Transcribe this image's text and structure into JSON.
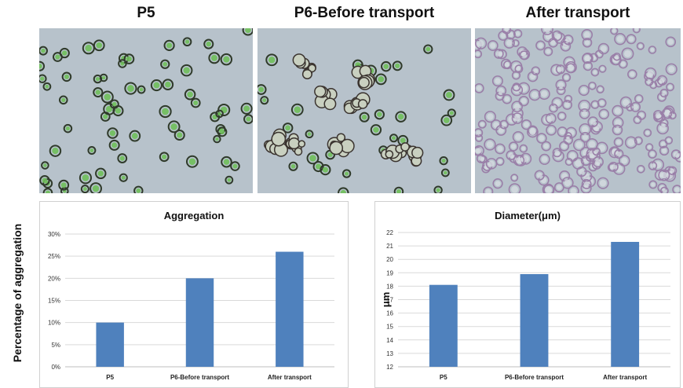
{
  "panels": [
    {
      "title": "P5"
    },
    {
      "title": "P6-Before transport"
    },
    {
      "title": "After transport"
    }
  ],
  "colors": {
    "bar": "#4f81bd",
    "grid": "#d9d9d9",
    "micro_bg": "#b7c2cb",
    "cell_green": "#6fbf5a",
    "cell_purple": "#9a7fa8"
  },
  "chart_data": [
    {
      "type": "bar",
      "title": "Aggregation",
      "ylabel": "Percentage of aggregation",
      "xlabel": "",
      "categories": [
        "P5",
        "P6-Before transport",
        "After transport"
      ],
      "values": [
        10,
        20,
        26
      ],
      "ylim": [
        0,
        30
      ],
      "yticks": [
        "0%",
        "5%",
        "10%",
        "15%",
        "20%",
        "25%",
        "30%"
      ],
      "grid": true
    },
    {
      "type": "bar",
      "title": "Diameter(μm)",
      "ylabel": "μm",
      "xlabel": "",
      "categories": [
        "P5",
        "P6-Before transport",
        "After transport"
      ],
      "values": [
        18.1,
        18.9,
        21.3
      ],
      "ylim": [
        12,
        22
      ],
      "yticks": [
        "12",
        "13",
        "14",
        "15",
        "16",
        "17",
        "18",
        "19",
        "20",
        "21",
        "22"
      ],
      "grid": true
    }
  ]
}
